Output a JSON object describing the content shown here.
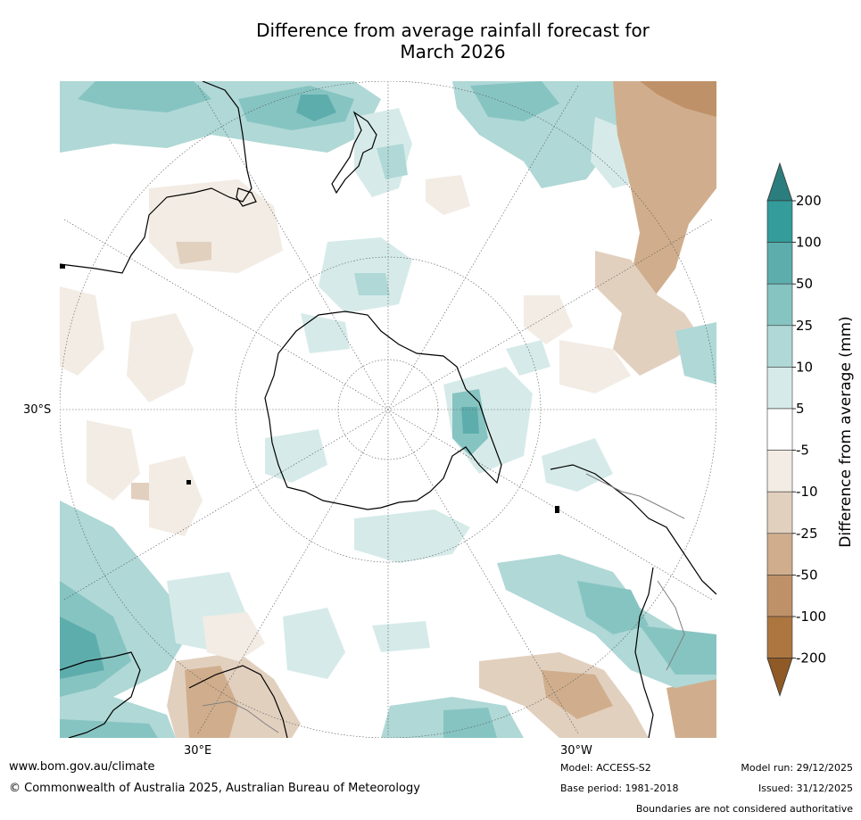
{
  "title": {
    "line1": "Difference from average rainfall forecast for",
    "line2": "March 2026"
  },
  "map": {
    "labels": {
      "lat_30s": "30°S",
      "lon_30e": "30°E",
      "lon_30w": "30°W"
    },
    "colors": {
      "ocean": "#ffffff",
      "coast": "#000000",
      "border": "#808080",
      "grid": "#555555"
    }
  },
  "colorbar": {
    "title": "Difference from average (mm)",
    "ticks": [
      "200",
      "100",
      "50",
      "25",
      "10",
      "5",
      "-5",
      "-10",
      "-25",
      "-50",
      "-100",
      "-200"
    ],
    "colors": [
      "#2c7e7e",
      "#349c9b",
      "#5eadad",
      "#86c4c2",
      "#afd8d6",
      "#d6ebe9",
      "#ffffff",
      "#f2ece4",
      "#e2d0bf",
      "#d0ae8d",
      "#bf9168",
      "#ad7640",
      "#8f5a25"
    ]
  },
  "footer": {
    "url": "www.bom.gov.au/climate",
    "copyright": "© Commonwealth of Australia 2025, Australian Bureau of Meteorology",
    "model": "Model: ACCESS-S2",
    "base_period": "Base period: 1981-2018",
    "model_run": "Model run: 29/12/2025",
    "issued": "Issued: 31/12/2025",
    "disclaimer": "Boundaries are not considered authoritative"
  }
}
